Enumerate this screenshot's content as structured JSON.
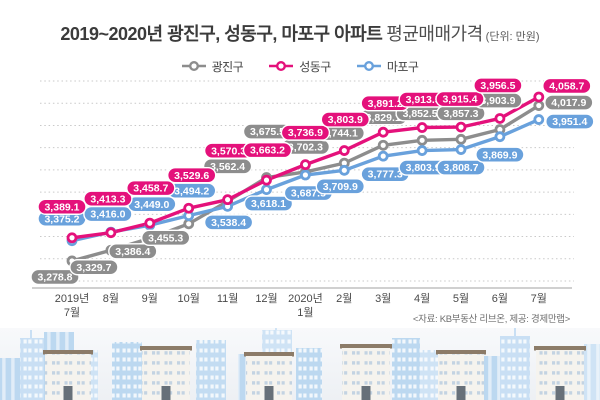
{
  "title": {
    "main": "2019~2020년 광진구, 성동구, 마포구 아파트",
    "sub": "평균매매가격",
    "unit": "(단위: 만원)"
  },
  "source_note": "<자료: KB부동산 리브온, 제공: 경제만랩>",
  "legend": {
    "items": [
      {
        "label": "광진구",
        "color": "#8d8d8d"
      },
      {
        "label": "성동구",
        "color": "#e4117b"
      },
      {
        "label": "마포구",
        "color": "#69a1dc"
      }
    ]
  },
  "chart_data": {
    "type": "line",
    "title": "2019~2020년 광진구, 성동구, 마포구 아파트 평균매매가격",
    "unit": "만원",
    "ylim": [
      3250,
      4100
    ],
    "grid": {
      "horizontal": true,
      "style": "dotted",
      "lines": 10
    },
    "legend_position": "top-center",
    "x_labels": [
      [
        "2019년",
        "7월"
      ],
      [
        "8월"
      ],
      [
        "9월"
      ],
      [
        "10월"
      ],
      [
        "11월"
      ],
      [
        "12월"
      ],
      [
        "2020년",
        "1월"
      ],
      [
        "2월"
      ],
      [
        "3월"
      ],
      [
        "4월"
      ],
      [
        "5월"
      ],
      [
        "6월"
      ],
      [
        "7월"
      ]
    ],
    "series": [
      {
        "name": "광진구",
        "color": "#8d8d8d",
        "values": [
          3278.8,
          3329.7,
          3386.4,
          3455.3,
          3562.4,
          3675.5,
          3702.3,
          3744.1,
          3829.1,
          3852.5,
          3857.3,
          3903.9,
          4017.9
        ],
        "label_dx": [
          -17,
          -17,
          -17,
          -23,
          0,
          1,
          0,
          -4,
          0,
          -2,
          0,
          -2,
          30
        ],
        "label_dy": [
          16,
          17,
          13,
          14,
          -35,
          -46,
          -25,
          -30,
          -28,
          -27,
          -26,
          -29,
          -3
        ]
      },
      {
        "name": "성동구",
        "color": "#e4117b",
        "values": [
          3389.1,
          3413.3,
          3458.7,
          3529.6,
          3570.3,
          3663.2,
          3736.9,
          3803.9,
          3891.2,
          3913.5,
          3915.4,
          3956.5,
          4058.7
        ],
        "label_dx": [
          -10,
          -3,
          1,
          3,
          1,
          1,
          0,
          1,
          2,
          1,
          -1,
          -2,
          28
        ],
        "label_dy": [
          -31,
          -34,
          -35,
          -33,
          -49,
          -30,
          -32,
          -31,
          -29,
          -28,
          -28,
          -33,
          -11
        ]
      },
      {
        "name": "마포구",
        "color": "#69a1dc",
        "values": [
          3375.2,
          3416.0,
          3449.0,
          3494.2,
          3538.4,
          3618.1,
          3687.5,
          3709.9,
          3777.3,
          3803.9,
          3808.7,
          3869.9,
          3951.4
        ],
        "label_dx": [
          -10,
          -3,
          2,
          3,
          1,
          2,
          3,
          -4,
          2,
          1,
          0,
          0,
          31
        ],
        "label_dy": [
          -22,
          -18,
          -21,
          -25,
          16,
          14,
          18,
          16,
          18,
          17,
          18,
          18,
          2
        ]
      }
    ]
  }
}
